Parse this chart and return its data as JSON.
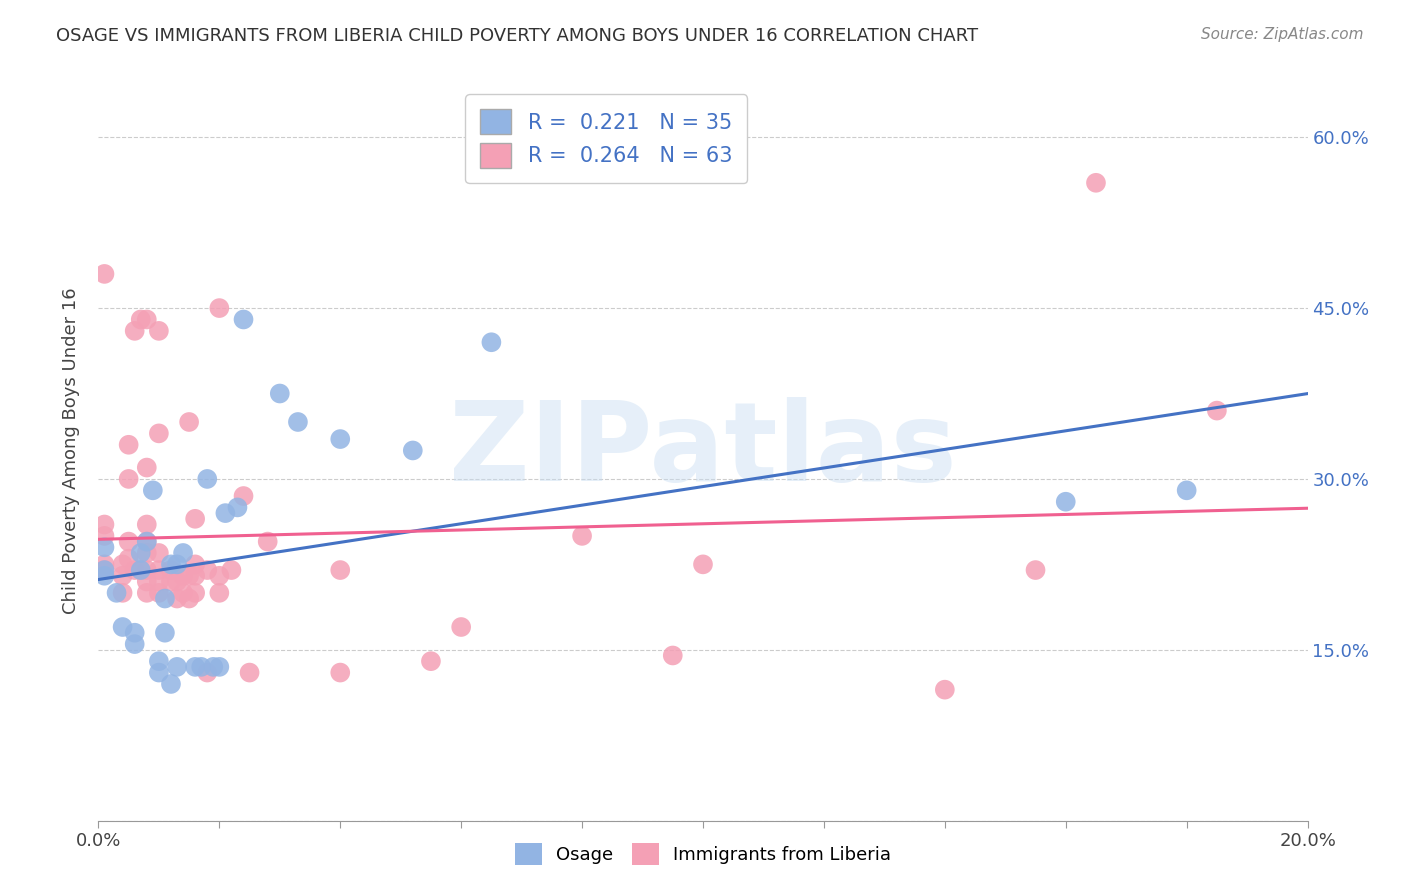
{
  "title": "OSAGE VS IMMIGRANTS FROM LIBERIA CHILD POVERTY AMONG BOYS UNDER 16 CORRELATION CHART",
  "source": "Source: ZipAtlas.com",
  "ylabel": "Child Poverty Among Boys Under 16",
  "xlim": [
    0.0,
    0.2
  ],
  "ylim": [
    0.0,
    0.65
  ],
  "x_ticks": [
    0.0,
    0.02,
    0.04,
    0.06,
    0.08,
    0.1,
    0.12,
    0.14,
    0.16,
    0.18,
    0.2
  ],
  "y_ticks": [
    0.0,
    0.15,
    0.3,
    0.45,
    0.6
  ],
  "osage_R": "0.221",
  "osage_N": "35",
  "liberia_R": "0.264",
  "liberia_N": "63",
  "osage_color": "#92b4e3",
  "liberia_color": "#f4a0b5",
  "osage_line_color": "#4472c4",
  "liberia_line_color": "#f06090",
  "watermark": "ZIPatlas",
  "osage_x": [
    0.001,
    0.001,
    0.001,
    0.003,
    0.004,
    0.006,
    0.006,
    0.007,
    0.007,
    0.008,
    0.009,
    0.01,
    0.01,
    0.011,
    0.011,
    0.012,
    0.012,
    0.013,
    0.013,
    0.014,
    0.016,
    0.017,
    0.018,
    0.019,
    0.02,
    0.021,
    0.023,
    0.024,
    0.03,
    0.033,
    0.04,
    0.052,
    0.065,
    0.16,
    0.18
  ],
  "osage_y": [
    0.215,
    0.22,
    0.24,
    0.2,
    0.17,
    0.155,
    0.165,
    0.22,
    0.235,
    0.245,
    0.29,
    0.13,
    0.14,
    0.165,
    0.195,
    0.225,
    0.12,
    0.135,
    0.225,
    0.235,
    0.135,
    0.135,
    0.3,
    0.135,
    0.135,
    0.27,
    0.275,
    0.44,
    0.375,
    0.35,
    0.335,
    0.325,
    0.42,
    0.28,
    0.29
  ],
  "liberia_x": [
    0.001,
    0.001,
    0.001,
    0.001,
    0.001,
    0.004,
    0.004,
    0.004,
    0.005,
    0.005,
    0.005,
    0.005,
    0.006,
    0.006,
    0.007,
    0.007,
    0.008,
    0.008,
    0.008,
    0.008,
    0.008,
    0.008,
    0.008,
    0.008,
    0.01,
    0.01,
    0.01,
    0.01,
    0.01,
    0.01,
    0.012,
    0.012,
    0.013,
    0.013,
    0.014,
    0.014,
    0.015,
    0.015,
    0.015,
    0.016,
    0.016,
    0.016,
    0.016,
    0.018,
    0.018,
    0.02,
    0.02,
    0.02,
    0.022,
    0.024,
    0.025,
    0.028,
    0.04,
    0.04,
    0.055,
    0.06,
    0.08,
    0.095,
    0.1,
    0.14,
    0.155,
    0.165,
    0.185
  ],
  "liberia_y": [
    0.22,
    0.225,
    0.25,
    0.26,
    0.48,
    0.2,
    0.215,
    0.225,
    0.23,
    0.245,
    0.3,
    0.33,
    0.22,
    0.43,
    0.22,
    0.44,
    0.2,
    0.21,
    0.22,
    0.235,
    0.245,
    0.26,
    0.31,
    0.44,
    0.2,
    0.21,
    0.22,
    0.235,
    0.34,
    0.43,
    0.21,
    0.22,
    0.195,
    0.21,
    0.2,
    0.215,
    0.195,
    0.215,
    0.35,
    0.2,
    0.215,
    0.225,
    0.265,
    0.13,
    0.22,
    0.2,
    0.215,
    0.45,
    0.22,
    0.285,
    0.13,
    0.245,
    0.13,
    0.22,
    0.14,
    0.17,
    0.25,
    0.145,
    0.225,
    0.115,
    0.22,
    0.56,
    0.36
  ]
}
